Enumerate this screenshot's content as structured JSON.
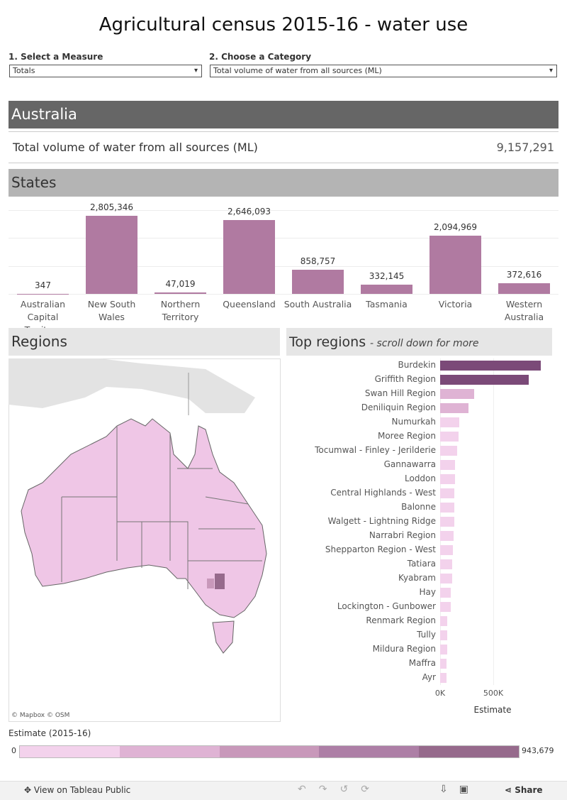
{
  "title": "Agricultural census 2015-16 - water use",
  "filters": [
    {
      "label": "1. Select a Measure",
      "value": "Totals"
    },
    {
      "label": "2. Choose a Category",
      "value": "Total volume of water from all sources (ML)"
    }
  ],
  "australia": {
    "heading": "Australia",
    "measure": "Total volume of water from all sources (ML)",
    "value": 9157291,
    "value_label": "9,157,291"
  },
  "regions": {
    "heading": "Regions",
    "attribution": "© Mapbox © OSM"
  },
  "chart_data": [
    {
      "type": "bar",
      "title": "States",
      "categories": [
        "Australian Capital Territory",
        "New South Wales",
        "Northern Territory",
        "Queensland",
        "South Australia",
        "Tasmania",
        "Victoria",
        "Western Australia"
      ],
      "values": [
        347,
        2805346,
        47019,
        2646093,
        858757,
        332145,
        2094969,
        372616
      ],
      "value_labels": [
        "347",
        "2,805,346",
        "47,019",
        "2,646,093",
        "858,757",
        "332,145",
        "2,094,969",
        "372,616"
      ],
      "color": "#b07aa1",
      "ylim": [
        0,
        3000000
      ],
      "yticks": [
        0,
        1000000,
        2000000,
        3000000
      ],
      "grid": true
    },
    {
      "type": "hbar",
      "title": "Top regions",
      "subtitle": "- scroll down for more",
      "categories": [
        "Burdekin",
        "Griffith Region",
        "Swan Hill Region",
        "Deniliquin Region",
        "Numurkah",
        "Moree Region",
        "Tocumwal - Finley - Jerilderie",
        "Gannawarra",
        "Loddon",
        "Central Highlands - West",
        "Balonne",
        "Walgett - Lightning Ridge",
        "Narrabri Region",
        "Shepparton Region - West",
        "Tatiara",
        "Kyabram",
        "Hay",
        "Lockington - Gunbower",
        "Renmark Region",
        "Tully",
        "Mildura Region",
        "Maffra",
        "Ayr"
      ],
      "values": [
        943679,
        833000,
        320000,
        267000,
        180000,
        173000,
        160000,
        140000,
        140000,
        133000,
        133000,
        130000,
        127000,
        120000,
        113000,
        113000,
        100000,
        100000,
        67000,
        67000,
        67000,
        60000,
        60000
      ],
      "xlim": [
        0,
        1000000
      ],
      "xticks": [
        {
          "value": 0,
          "label": "0K"
        },
        {
          "value": 500000,
          "label": "500K"
        }
      ],
      "xlabel": "Estimate",
      "grid": true
    }
  ],
  "legend": {
    "title": "Estimate (2015-16)",
    "min": 0,
    "max": 943679,
    "max_label": "943,679",
    "colors": [
      "#f3d2ec",
      "#dfb3d4",
      "#c898ba",
      "#ad7fa6",
      "#966a8c"
    ]
  },
  "footer": {
    "link": "View on Tableau Public",
    "share": "Share"
  }
}
